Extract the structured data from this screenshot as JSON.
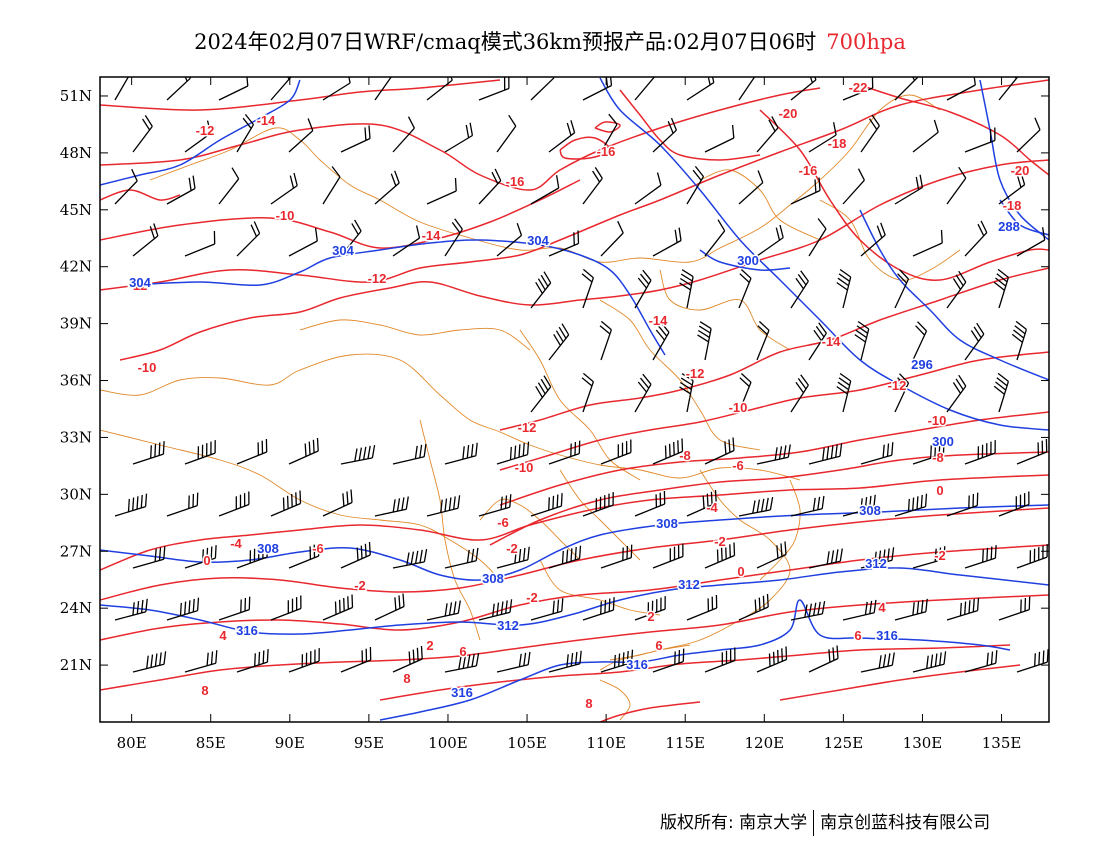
{
  "title": {
    "main": "2024年02月07日WRF/cmaq模式36km预报产品:02月07日06时",
    "level": "700hpa",
    "level_color": "#e8282e"
  },
  "map": {
    "lon_range": [
      78,
      138
    ],
    "lat_range": [
      18,
      52
    ],
    "lon_ticks": [
      "80E",
      "85E",
      "90E",
      "95E",
      "100E",
      "105E",
      "110E",
      "115E",
      "120E",
      "125E",
      "130E",
      "135E"
    ],
    "lat_ticks": [
      "51N",
      "48N",
      "45N",
      "42N",
      "39N",
      "36N",
      "33N",
      "30N",
      "27N",
      "24N",
      "21N"
    ],
    "temperature_color": "#e8282e",
    "height_color": "#1f3fe0",
    "boundary_color": "#e0892a",
    "barb_color": "#000000",
    "temperature_labels": [
      "-22",
      "-20",
      "-20",
      "-18",
      "-18",
      "-16",
      "-16",
      "-16",
      "-14",
      "-14",
      "-14",
      "-14",
      "-12",
      "-12",
      "-12",
      "-12",
      "-12",
      "-12",
      "-10",
      "-10",
      "-10",
      "-10",
      "-10",
      "-8",
      "-8",
      "-6",
      "-6",
      "-6",
      "-4",
      "-4",
      "-2",
      "-2",
      "-2",
      "-2",
      "-2",
      "0",
      "0",
      "0",
      "2",
      "2",
      "4",
      "4",
      "6",
      "6",
      "6",
      "8",
      "8",
      "8"
    ],
    "height_labels": [
      "304",
      "304",
      "304",
      "300",
      "300",
      "296",
      "288",
      "308",
      "308",
      "308",
      "308",
      "312",
      "312",
      "312",
      "316",
      "316",
      "316",
      "316"
    ]
  },
  "footer": {
    "copyright": "版权所有: 南京大学",
    "company": "南京创蓝科技有限公司"
  }
}
